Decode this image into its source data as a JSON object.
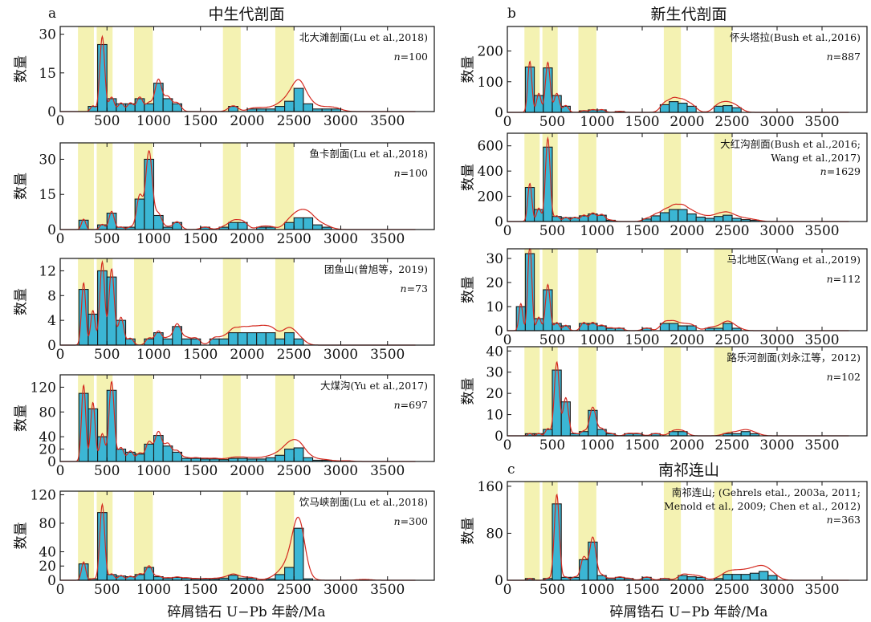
{
  "figure": {
    "panel_titles": {
      "a": "中生代剖面",
      "b": "新生代剖面",
      "c": "南祁连山"
    },
    "panel_letters": {
      "a": "a",
      "b": "b",
      "c": "c"
    },
    "xlabel": "碎屑锆石 U−Pb 年龄/Ma",
    "ylabel": "数量",
    "colors": {
      "bar": "#3bb6d4",
      "bar_edge": "#1a1a1a",
      "kde": "#d42a20",
      "band": "#f4f2b2"
    },
    "highlight_bands_ma": [
      [
        190,
        360
      ],
      [
        390,
        560
      ],
      [
        790,
        990
      ],
      [
        1740,
        1930
      ],
      [
        2300,
        2500
      ]
    ]
  },
  "chart_data": [
    {
      "id": "beidatan",
      "type": "bar",
      "column": "left",
      "label": "北大滩剖面(Lu et al.,2018)",
      "n_text": "=100",
      "xlim": [
        0,
        4000
      ],
      "ylim": [
        0,
        33
      ],
      "yticks": [
        0,
        15,
        30
      ],
      "xticks": [
        0,
        500,
        1000,
        1500,
        2000,
        2500,
        3000,
        3500
      ],
      "bin_width": 100,
      "bins": [
        [
          300,
          2
        ],
        [
          400,
          26
        ],
        [
          500,
          5
        ],
        [
          600,
          3
        ],
        [
          700,
          3
        ],
        [
          800,
          5
        ],
        [
          900,
          3
        ],
        [
          1000,
          11
        ],
        [
          1100,
          5
        ],
        [
          1200,
          3
        ],
        [
          1800,
          2
        ],
        [
          2000,
          1
        ],
        [
          2100,
          1
        ],
        [
          2200,
          1
        ],
        [
          2300,
          2
        ],
        [
          2400,
          4
        ],
        [
          2500,
          9
        ],
        [
          2600,
          3
        ],
        [
          2700,
          1
        ],
        [
          2800,
          1
        ],
        [
          2900,
          1
        ]
      ]
    },
    {
      "id": "yuka",
      "type": "bar",
      "column": "left",
      "label": "鱼卡剖面(Lu et al.,2018)",
      "n_text": "=100",
      "xlim": [
        0,
        4000
      ],
      "ylim": [
        0,
        37
      ],
      "yticks": [
        0,
        15,
        30
      ],
      "xticks": [
        0,
        500,
        1000,
        1500,
        2000,
        2500,
        3000,
        3500
      ],
      "bin_width": 100,
      "bins": [
        [
          200,
          4
        ],
        [
          400,
          2
        ],
        [
          500,
          7
        ],
        [
          600,
          1
        ],
        [
          700,
          1
        ],
        [
          800,
          13
        ],
        [
          900,
          30
        ],
        [
          1000,
          6
        ],
        [
          1100,
          1
        ],
        [
          1200,
          3
        ],
        [
          1500,
          1
        ],
        [
          1700,
          1
        ],
        [
          1800,
          3
        ],
        [
          1900,
          3
        ],
        [
          2100,
          1
        ],
        [
          2200,
          1
        ],
        [
          2400,
          3
        ],
        [
          2500,
          5
        ],
        [
          2600,
          5
        ],
        [
          2700,
          2
        ],
        [
          2800,
          1
        ]
      ]
    },
    {
      "id": "tuanyushan",
      "type": "bar",
      "column": "left",
      "label": "团鱼山(曾旭等，2019)",
      "n_text": "=73",
      "xlim": [
        0,
        4000
      ],
      "ylim": [
        0,
        14
      ],
      "yticks": [
        0,
        4,
        8,
        12
      ],
      "xticks": [
        0,
        500,
        1000,
        1500,
        2000,
        2500,
        3000,
        3500
      ],
      "bin_width": 100,
      "bins": [
        [
          200,
          9
        ],
        [
          300,
          5
        ],
        [
          400,
          12
        ],
        [
          500,
          11
        ],
        [
          600,
          4
        ],
        [
          700,
          1
        ],
        [
          900,
          1
        ],
        [
          1000,
          2
        ],
        [
          1100,
          1
        ],
        [
          1200,
          3
        ],
        [
          1300,
          1
        ],
        [
          1400,
          1
        ],
        [
          1600,
          1
        ],
        [
          1700,
          1
        ],
        [
          1800,
          2
        ],
        [
          1900,
          2
        ],
        [
          2000,
          2
        ],
        [
          2100,
          2
        ],
        [
          2200,
          2
        ],
        [
          2300,
          1
        ],
        [
          2400,
          2
        ],
        [
          2500,
          1
        ]
      ]
    },
    {
      "id": "dameigou",
      "type": "bar",
      "column": "left",
      "label": "大煤沟(Yu et al.,2017)",
      "n_text": "=697",
      "xlim": [
        0,
        4000
      ],
      "ylim": [
        0,
        140
      ],
      "yticks": [
        0,
        20,
        40,
        80,
        120
      ],
      "xticks": [
        0,
        500,
        1000,
        1500,
        2000,
        2500,
        3000,
        3500
      ],
      "bin_width": 100,
      "bins": [
        [
          200,
          110
        ],
        [
          300,
          85
        ],
        [
          400,
          40
        ],
        [
          500,
          115
        ],
        [
          600,
          20
        ],
        [
          700,
          15
        ],
        [
          800,
          12
        ],
        [
          900,
          28
        ],
        [
          1000,
          42
        ],
        [
          1100,
          25
        ],
        [
          1200,
          15
        ],
        [
          1300,
          5
        ],
        [
          1400,
          5
        ],
        [
          1500,
          4
        ],
        [
          1600,
          4
        ],
        [
          1700,
          3
        ],
        [
          1800,
          5
        ],
        [
          1900,
          5
        ],
        [
          2000,
          4
        ],
        [
          2100,
          4
        ],
        [
          2200,
          6
        ],
        [
          2300,
          10
        ],
        [
          2400,
          20
        ],
        [
          2500,
          22
        ],
        [
          2600,
          6
        ],
        [
          2700,
          2
        ],
        [
          2800,
          2
        ],
        [
          3000,
          1
        ]
      ]
    },
    {
      "id": "yinmaxia",
      "type": "bar",
      "column": "left",
      "label": "饮马峡剖面(Lu et al.,2018)",
      "n_text": "=300",
      "xlim": [
        0,
        4000
      ],
      "ylim": [
        0,
        125
      ],
      "yticks": [
        0,
        20,
        40,
        80,
        120
      ],
      "xticks": [
        0,
        500,
        1000,
        1500,
        2000,
        2500,
        3000,
        3500
      ],
      "bin_width": 100,
      "bins": [
        [
          200,
          23
        ],
        [
          300,
          2
        ],
        [
          400,
          95
        ],
        [
          500,
          8
        ],
        [
          600,
          6
        ],
        [
          700,
          5
        ],
        [
          800,
          8
        ],
        [
          900,
          18
        ],
        [
          1000,
          5
        ],
        [
          1100,
          3
        ],
        [
          1200,
          4
        ],
        [
          1300,
          3
        ],
        [
          1400,
          2
        ],
        [
          1500,
          2
        ],
        [
          1600,
          2
        ],
        [
          1700,
          3
        ],
        [
          1800,
          7
        ],
        [
          1900,
          3
        ],
        [
          2000,
          3
        ],
        [
          2200,
          2
        ],
        [
          2300,
          8
        ],
        [
          2400,
          18
        ],
        [
          2500,
          73
        ],
        [
          2600,
          2
        ],
        [
          3200,
          1
        ]
      ]
    },
    {
      "id": "huaitoutala",
      "type": "bar",
      "column": "right",
      "label": "怀头塔拉(Bush et al.,2016)",
      "n_text": "=887",
      "xlim": [
        0,
        4000
      ],
      "ylim": [
        0,
        280
      ],
      "yticks": [
        0,
        100,
        200
      ],
      "xticks": [
        0,
        500,
        1000,
        1500,
        2000,
        2500,
        3000,
        3500
      ],
      "bin_width": 100,
      "bins": [
        [
          200,
          148
        ],
        [
          300,
          55
        ],
        [
          400,
          145
        ],
        [
          500,
          55
        ],
        [
          600,
          20
        ],
        [
          800,
          5
        ],
        [
          900,
          8
        ],
        [
          1000,
          8
        ],
        [
          1200,
          3
        ],
        [
          1700,
          25
        ],
        [
          1800,
          35
        ],
        [
          1900,
          30
        ],
        [
          2000,
          20
        ],
        [
          2300,
          20
        ],
        [
          2400,
          22
        ],
        [
          2500,
          15
        ]
      ]
    },
    {
      "id": "dahonggou",
      "type": "bar",
      "column": "right",
      "label": "大红沟剖面(Bush et al.,2016;",
      "label2": "Wang et al.,2017)",
      "n_text": "=1629",
      "xlim": [
        0,
        4000
      ],
      "ylim": [
        0,
        700
      ],
      "yticks": [
        0,
        200,
        400,
        600
      ],
      "xticks": [
        0,
        500,
        1000,
        1500,
        2000,
        2500,
        3000,
        3500
      ],
      "bin_width": 100,
      "bins": [
        [
          200,
          270
        ],
        [
          300,
          95
        ],
        [
          400,
          590
        ],
        [
          500,
          40
        ],
        [
          600,
          30
        ],
        [
          700,
          30
        ],
        [
          800,
          45
        ],
        [
          900,
          60
        ],
        [
          1000,
          50
        ],
        [
          1100,
          10
        ],
        [
          1500,
          20
        ],
        [
          1600,
          45
        ],
        [
          1700,
          70
        ],
        [
          1800,
          95
        ],
        [
          1900,
          95
        ],
        [
          2000,
          60
        ],
        [
          2100,
          35
        ],
        [
          2200,
          25
        ],
        [
          2300,
          40
        ],
        [
          2400,
          50
        ],
        [
          2500,
          25
        ],
        [
          2600,
          15
        ],
        [
          2700,
          10
        ]
      ]
    },
    {
      "id": "mabei",
      "type": "bar",
      "column": "right",
      "label": "马北地区(Wang et al.,2019)",
      "n_text": "=112",
      "xlim": [
        0,
        4000
      ],
      "ylim": [
        0,
        34
      ],
      "yticks": [
        0,
        10,
        20,
        30
      ],
      "xticks": [
        0,
        500,
        1000,
        1500,
        2000,
        2500,
        3000,
        3500
      ],
      "bin_width": 100,
      "bins": [
        [
          100,
          10
        ],
        [
          200,
          32
        ],
        [
          300,
          5
        ],
        [
          400,
          17
        ],
        [
          500,
          3
        ],
        [
          600,
          2
        ],
        [
          800,
          3
        ],
        [
          900,
          3
        ],
        [
          1000,
          2
        ],
        [
          1100,
          1
        ],
        [
          1200,
          1
        ],
        [
          1500,
          1
        ],
        [
          1700,
          3
        ],
        [
          1800,
          3
        ],
        [
          1900,
          2
        ],
        [
          2000,
          2
        ],
        [
          2200,
          1
        ],
        [
          2300,
          1
        ],
        [
          2400,
          3
        ],
        [
          2500,
          1
        ]
      ]
    },
    {
      "id": "luolehe",
      "type": "bar",
      "column": "right",
      "label": "路乐河剖面(刘永江等，2012)",
      "n_text": "=102",
      "xlim": [
        0,
        4000
      ],
      "ylim": [
        0,
        42
      ],
      "yticks": [
        0,
        10,
        20,
        30,
        40
      ],
      "xticks": [
        0,
        500,
        1000,
        1500,
        2000,
        2500,
        3000,
        3500
      ],
      "bin_width": 100,
      "bins": [
        [
          200,
          1
        ],
        [
          300,
          1
        ],
        [
          400,
          3
        ],
        [
          500,
          31
        ],
        [
          600,
          16
        ],
        [
          700,
          1
        ],
        [
          800,
          2
        ],
        [
          900,
          12
        ],
        [
          1000,
          3
        ],
        [
          1100,
          1
        ],
        [
          1300,
          1
        ],
        [
          1400,
          1
        ],
        [
          1600,
          1
        ],
        [
          1800,
          2
        ],
        [
          1900,
          2
        ],
        [
          2400,
          1
        ],
        [
          2500,
          1
        ],
        [
          2600,
          2
        ],
        [
          2700,
          1
        ]
      ]
    },
    {
      "id": "nanqilian",
      "type": "bar",
      "column": "right",
      "label": "南祁连山; (Gehrels etal., 2003a, 2011;",
      "label2": "Menold et al., 2009; Chen et al., 2012)",
      "n_text": "=363",
      "xlim": [
        0,
        4000
      ],
      "ylim": [
        0,
        168
      ],
      "yticks": [
        0,
        80,
        160
      ],
      "xticks": [
        0,
        500,
        1000,
        1500,
        2000,
        2500,
        3000,
        3500
      ],
      "bin_width": 100,
      "bins": [
        [
          200,
          3
        ],
        [
          400,
          3
        ],
        [
          500,
          130
        ],
        [
          600,
          5
        ],
        [
          700,
          5
        ],
        [
          800,
          35
        ],
        [
          900,
          65
        ],
        [
          1000,
          8
        ],
        [
          1100,
          3
        ],
        [
          1200,
          5
        ],
        [
          1300,
          3
        ],
        [
          1500,
          5
        ],
        [
          1700,
          3
        ],
        [
          1900,
          8
        ],
        [
          2000,
          6
        ],
        [
          2100,
          5
        ],
        [
          2300,
          3
        ],
        [
          2400,
          10
        ],
        [
          2500,
          10
        ],
        [
          2600,
          10
        ],
        [
          2700,
          12
        ],
        [
          2800,
          15
        ],
        [
          2900,
          8
        ]
      ]
    }
  ]
}
